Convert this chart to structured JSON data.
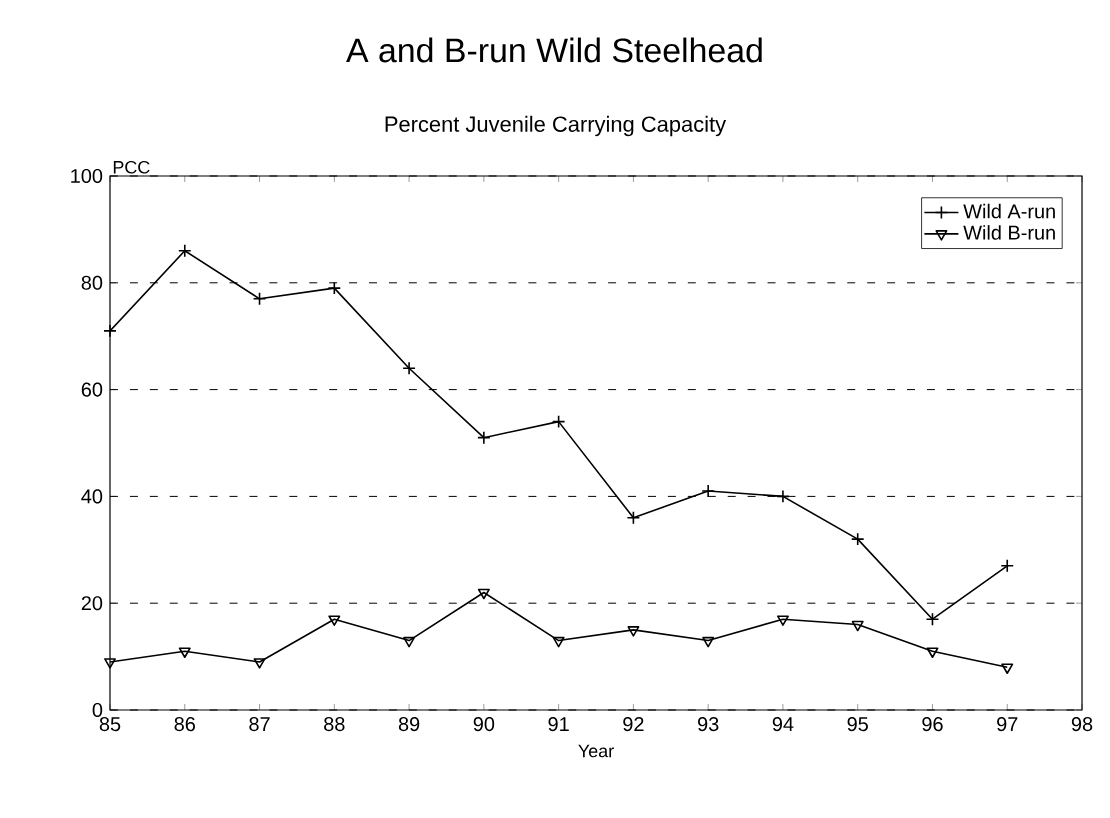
{
  "chart_data": {
    "type": "line",
    "title": "A and B-run Wild Steelhead",
    "subtitle": "Percent Juvenile Carrying Capacity",
    "xlabel": "Year",
    "ylabel": "PCC",
    "x": [
      85,
      86,
      87,
      88,
      89,
      90,
      91,
      92,
      93,
      94,
      95,
      96,
      97
    ],
    "series": [
      {
        "name": "Wild A-run",
        "color": "#000000",
        "marker": "cross",
        "values": [
          71,
          86,
          77,
          79,
          64,
          51,
          54,
          36,
          41,
          40,
          32,
          17,
          27
        ]
      },
      {
        "name": "Wild B-run",
        "color": "#000000",
        "marker": "triangle",
        "values": [
          9,
          11,
          9,
          17,
          13,
          22,
          13,
          15,
          13,
          17,
          16,
          11,
          8
        ]
      }
    ],
    "xlim": [
      85,
      98
    ],
    "ylim": [
      0,
      100
    ],
    "xticks": [
      85,
      86,
      87,
      88,
      89,
      90,
      91,
      92,
      93,
      94,
      95,
      96,
      97,
      98
    ],
    "yticks": [
      0,
      20,
      40,
      60,
      80,
      100
    ],
    "grid": "y",
    "legend": "top right",
    "line_style": "solid"
  }
}
